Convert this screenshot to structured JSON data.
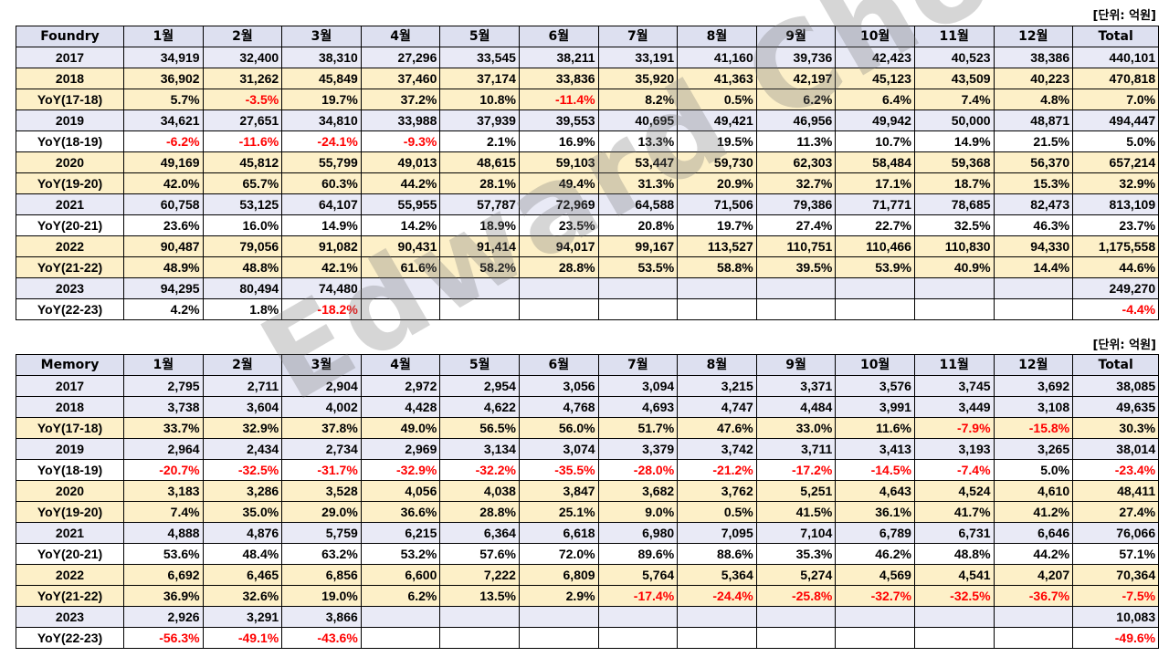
{
  "unit_label": "[단위: 억원]",
  "watermark": "Edward Choi",
  "months": [
    "1월",
    "2월",
    "3월",
    "4월",
    "5월",
    "6월",
    "7월",
    "8월",
    "9월",
    "10월",
    "11월",
    "12월"
  ],
  "total_label": "Total",
  "foundry": {
    "title": "Foundry",
    "rows": [
      {
        "label": "2017",
        "kind": "year",
        "alt": false,
        "values": [
          "34,919",
          "32,400",
          "38,310",
          "27,296",
          "33,545",
          "38,211",
          "33,191",
          "41,160",
          "39,736",
          "42,423",
          "40,523",
          "38,386"
        ],
        "total": "440,101"
      },
      {
        "label": "2018",
        "kind": "year",
        "alt": true,
        "values": [
          "36,902",
          "31,262",
          "45,849",
          "37,460",
          "37,174",
          "33,836",
          "35,920",
          "41,363",
          "42,197",
          "45,123",
          "43,509",
          "40,223"
        ],
        "total": "470,818"
      },
      {
        "label": "YoY(17-18)",
        "kind": "yoy",
        "alt": true,
        "values": [
          "5.7%",
          "-3.5%",
          "19.7%",
          "37.2%",
          "10.8%",
          "-11.4%",
          "8.2%",
          "0.5%",
          "6.2%",
          "6.4%",
          "7.4%",
          "4.8%"
        ],
        "total": "7.0%"
      },
      {
        "label": "2019",
        "kind": "year",
        "alt": false,
        "values": [
          "34,621",
          "27,651",
          "34,810",
          "33,988",
          "37,939",
          "39,553",
          "40,695",
          "49,421",
          "46,956",
          "49,942",
          "50,000",
          "48,871"
        ],
        "total": "494,447"
      },
      {
        "label": "YoY(18-19)",
        "kind": "yoy",
        "alt": false,
        "values": [
          "-6.2%",
          "-11.6%",
          "-24.1%",
          "-9.3%",
          "2.1%",
          "16.9%",
          "13.3%",
          "19.5%",
          "11.3%",
          "10.7%",
          "14.9%",
          "21.5%"
        ],
        "total": "5.0%"
      },
      {
        "label": "2020",
        "kind": "year",
        "alt": true,
        "values": [
          "49,169",
          "45,812",
          "55,799",
          "49,013",
          "48,615",
          "59,103",
          "53,447",
          "59,730",
          "62,303",
          "58,484",
          "59,368",
          "56,370"
        ],
        "total": "657,214"
      },
      {
        "label": "YoY(19-20)",
        "kind": "yoy",
        "alt": true,
        "values": [
          "42.0%",
          "65.7%",
          "60.3%",
          "44.2%",
          "28.1%",
          "49.4%",
          "31.3%",
          "20.9%",
          "32.7%",
          "17.1%",
          "18.7%",
          "15.3%"
        ],
        "total": "32.9%"
      },
      {
        "label": "2021",
        "kind": "year",
        "alt": false,
        "values": [
          "60,758",
          "53,125",
          "64,107",
          "55,955",
          "57,787",
          "72,969",
          "64,588",
          "71,506",
          "79,386",
          "71,771",
          "78,685",
          "82,473"
        ],
        "total": "813,109"
      },
      {
        "label": "YoY(20-21)",
        "kind": "yoy",
        "alt": false,
        "values": [
          "23.6%",
          "16.0%",
          "14.9%",
          "14.2%",
          "18.9%",
          "23.5%",
          "20.8%",
          "19.7%",
          "27.4%",
          "22.7%",
          "32.5%",
          "46.3%"
        ],
        "total": "23.7%"
      },
      {
        "label": "2022",
        "kind": "year",
        "alt": true,
        "values": [
          "90,487",
          "79,056",
          "91,082",
          "90,431",
          "91,414",
          "94,017",
          "99,167",
          "113,527",
          "110,751",
          "110,466",
          "110,830",
          "94,330"
        ],
        "total": "1,175,558"
      },
      {
        "label": "YoY(21-22)",
        "kind": "yoy",
        "alt": true,
        "values": [
          "48.9%",
          "48.8%",
          "42.1%",
          "61.6%",
          "58.2%",
          "28.8%",
          "53.5%",
          "58.8%",
          "39.5%",
          "53.9%",
          "40.9%",
          "14.4%"
        ],
        "total": "44.6%"
      },
      {
        "label": "2023",
        "kind": "year",
        "alt": false,
        "values": [
          "94,295",
          "80,494",
          "74,480",
          "",
          "",
          "",
          "",
          "",
          "",
          "",
          "",
          ""
        ],
        "total": "249,270"
      },
      {
        "label": "YoY(22-23)",
        "kind": "yoy",
        "alt": false,
        "values": [
          "4.2%",
          "1.8%",
          "-18.2%",
          "",
          "",
          "",
          "",
          "",
          "",
          "",
          "",
          ""
        ],
        "total": "-4.4%"
      }
    ]
  },
  "memory": {
    "title": "Memory",
    "rows": [
      {
        "label": "2017",
        "kind": "year",
        "alt": false,
        "values": [
          "2,795",
          "2,711",
          "2,904",
          "2,972",
          "2,954",
          "3,056",
          "3,094",
          "3,215",
          "3,371",
          "3,576",
          "3,745",
          "3,692"
        ],
        "total": "38,085"
      },
      {
        "label": "2018",
        "kind": "year",
        "alt": false,
        "values": [
          "3,738",
          "3,604",
          "4,002",
          "4,428",
          "4,622",
          "4,768",
          "4,693",
          "4,747",
          "4,484",
          "3,991",
          "3,449",
          "3,108"
        ],
        "total": "49,635"
      },
      {
        "label": "YoY(17-18)",
        "kind": "yoy",
        "alt": true,
        "values": [
          "33.7%",
          "32.9%",
          "37.8%",
          "49.0%",
          "56.5%",
          "56.0%",
          "51.7%",
          "47.6%",
          "33.0%",
          "11.6%",
          "-7.9%",
          "-15.8%"
        ],
        "total": "30.3%"
      },
      {
        "label": "2019",
        "kind": "year",
        "alt": false,
        "values": [
          "2,964",
          "2,434",
          "2,734",
          "2,969",
          "3,134",
          "3,074",
          "3,379",
          "3,742",
          "3,711",
          "3,413",
          "3,193",
          "3,265"
        ],
        "total": "38,014"
      },
      {
        "label": "YoY(18-19)",
        "kind": "yoy",
        "alt": false,
        "values": [
          "-20.7%",
          "-32.5%",
          "-31.7%",
          "-32.9%",
          "-32.2%",
          "-35.5%",
          "-28.0%",
          "-21.2%",
          "-17.2%",
          "-14.5%",
          "-7.4%",
          "5.0%"
        ],
        "total": "-23.4%"
      },
      {
        "label": "2020",
        "kind": "year",
        "alt": true,
        "values": [
          "3,183",
          "3,286",
          "3,528",
          "4,056",
          "4,038",
          "3,847",
          "3,682",
          "3,762",
          "5,251",
          "4,643",
          "4,524",
          "4,610"
        ],
        "total": "48,411"
      },
      {
        "label": "YoY(19-20)",
        "kind": "yoy",
        "alt": true,
        "values": [
          "7.4%",
          "35.0%",
          "29.0%",
          "36.6%",
          "28.8%",
          "25.1%",
          "9.0%",
          "0.5%",
          "41.5%",
          "36.1%",
          "41.7%",
          "41.2%"
        ],
        "total": "27.4%"
      },
      {
        "label": "2021",
        "kind": "year",
        "alt": false,
        "values": [
          "4,888",
          "4,876",
          "5,759",
          "6,215",
          "6,364",
          "6,618",
          "6,980",
          "7,095",
          "7,104",
          "6,789",
          "6,731",
          "6,646"
        ],
        "total": "76,066"
      },
      {
        "label": "YoY(20-21)",
        "kind": "yoy",
        "alt": false,
        "values": [
          "53.6%",
          "48.4%",
          "63.2%",
          "53.2%",
          "57.6%",
          "72.0%",
          "89.6%",
          "88.6%",
          "35.3%",
          "46.2%",
          "48.8%",
          "44.2%"
        ],
        "total": "57.1%"
      },
      {
        "label": "2022",
        "kind": "year",
        "alt": true,
        "values": [
          "6,692",
          "6,465",
          "6,856",
          "6,600",
          "7,222",
          "6,809",
          "5,764",
          "5,364",
          "5,274",
          "4,569",
          "4,541",
          "4,207"
        ],
        "total": "70,364"
      },
      {
        "label": "YoY(21-22)",
        "kind": "yoy",
        "alt": true,
        "values": [
          "36.9%",
          "32.6%",
          "19.0%",
          "6.2%",
          "13.5%",
          "2.9%",
          "-17.4%",
          "-24.4%",
          "-25.8%",
          "-32.7%",
          "-32.5%",
          "-36.7%"
        ],
        "total": "-7.5%"
      },
      {
        "label": "2023",
        "kind": "year",
        "alt": false,
        "values": [
          "2,926",
          "3,291",
          "3,866",
          "",
          "",
          "",
          "",
          "",
          "",
          "",
          "",
          ""
        ],
        "total": "10,083"
      },
      {
        "label": "YoY(22-23)",
        "kind": "yoy",
        "alt": false,
        "values": [
          "-56.3%",
          "-49.1%",
          "-43.6%",
          "",
          "",
          "",
          "",
          "",
          "",
          "",
          "",
          ""
        ],
        "total": "-49.6%"
      }
    ]
  }
}
